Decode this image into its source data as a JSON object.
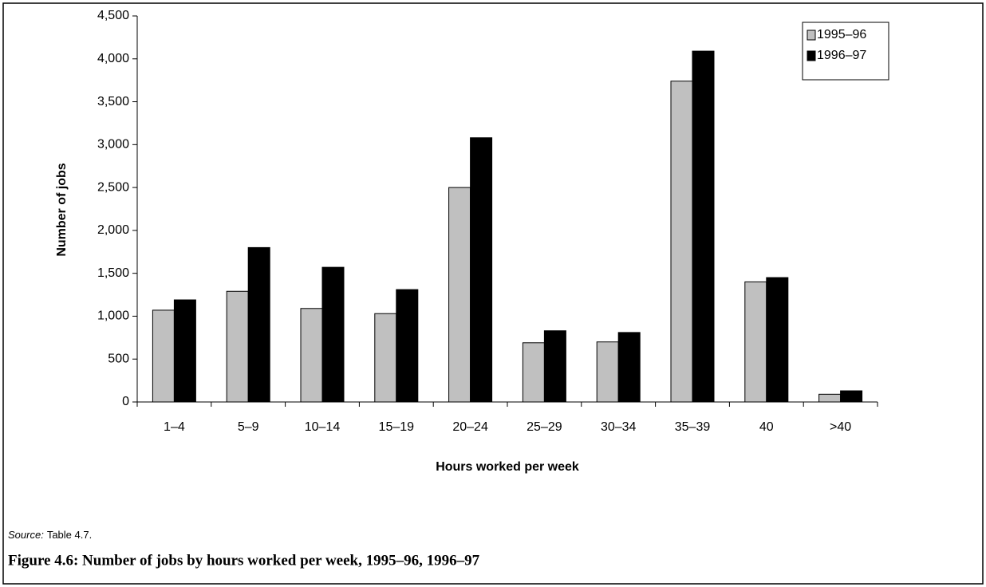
{
  "chart_data": {
    "type": "bar",
    "x_label": "Hours worked per week",
    "y_label": "Number of jobs",
    "categories": [
      "1–4",
      "5–9",
      "10–14",
      "15–19",
      "20–24",
      "25–29",
      "30–34",
      "35–39",
      "40",
      ">40"
    ],
    "series": [
      {
        "name": "1995–96",
        "color": "#c0c0c0",
        "values": [
          1070,
          1290,
          1090,
          1030,
          2500,
          690,
          700,
          3740,
          1400,
          90
        ]
      },
      {
        "name": "1996–97",
        "color": "#000000",
        "values": [
          1190,
          1800,
          1570,
          1310,
          3080,
          830,
          810,
          4090,
          1450,
          130
        ]
      }
    ],
    "ylim": [
      0,
      4500
    ],
    "yticks": [
      0,
      500,
      {
        "value": 1000,
        "label": "1,000"
      },
      {
        "value": 1500,
        "label": "1,500"
      },
      {
        "value": 2000,
        "label": "2,000"
      },
      {
        "value": 2500,
        "label": "2,500"
      },
      {
        "value": 3000,
        "label": "3,000"
      },
      {
        "value": 3500,
        "label": "3,500"
      },
      {
        "value": 4000,
        "label": "4,000"
      },
      {
        "value": 4500,
        "label": "4,500"
      }
    ],
    "grid": false,
    "legend": "top-right",
    "source_label": "Source:",
    "source_text": "Table 4.7.",
    "caption": "Figure 4.6: Number of jobs by hours worked per week, 1995–96, 1996–97"
  }
}
